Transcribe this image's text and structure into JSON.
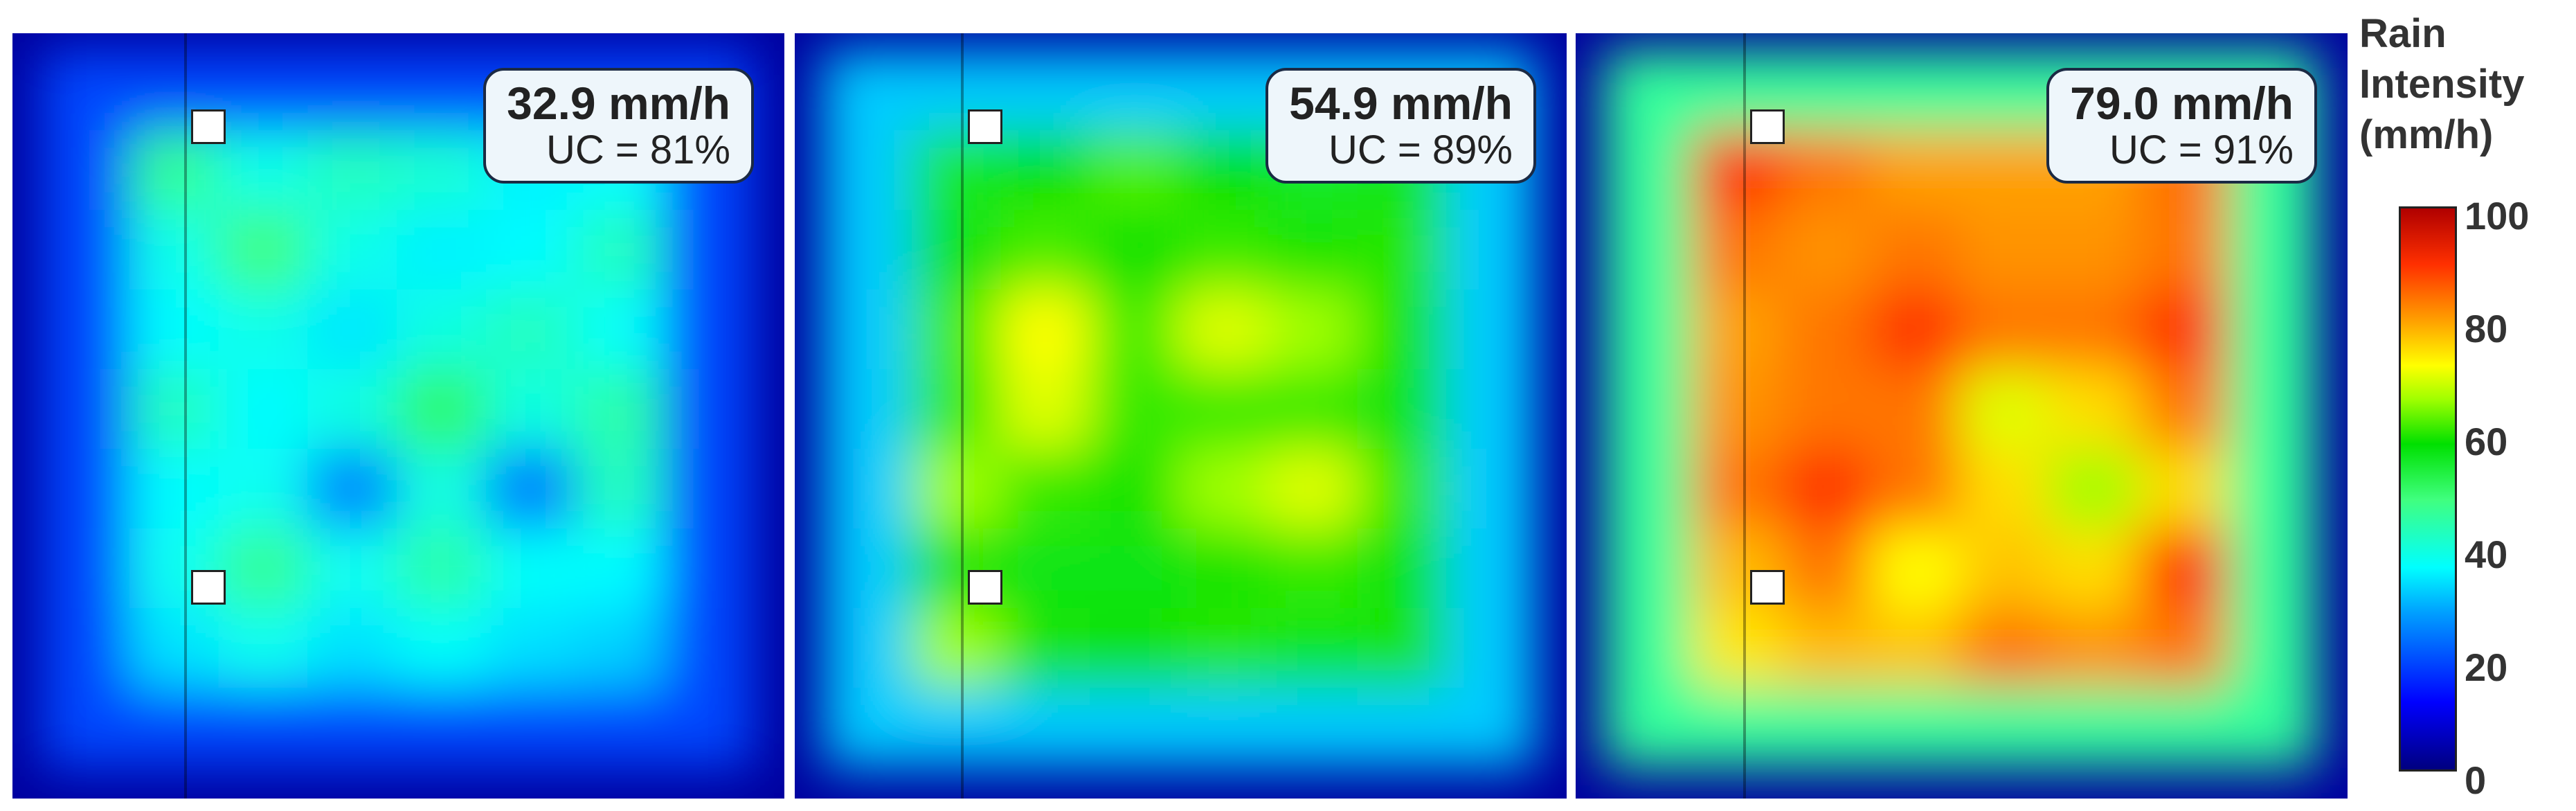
{
  "chart_data": [
    {
      "type": "heatmap",
      "title": "32.9 mm/h",
      "subtitle": "UC = 81%",
      "mean_intensity_mm_per_h": 32.9,
      "uniformity_coefficient_percent": 81,
      "base_value": 32,
      "edge_value": 3,
      "hotspots": [
        {
          "col": 1,
          "row": 1,
          "value": 46
        },
        {
          "col": 3,
          "row": 1,
          "value": 42
        },
        {
          "col": 4,
          "row": 1,
          "value": 40
        },
        {
          "col": 2,
          "row": 2,
          "value": 48
        },
        {
          "col": 6,
          "row": 2,
          "value": 42
        },
        {
          "col": 5,
          "row": 3,
          "value": 42
        },
        {
          "col": 4,
          "row": 4,
          "value": 50
        },
        {
          "col": 6,
          "row": 4,
          "value": 44
        },
        {
          "col": 2,
          "row": 6,
          "value": 46
        },
        {
          "col": 4,
          "row": 6,
          "value": 44
        },
        {
          "col": 6,
          "row": 5,
          "value": 42
        },
        {
          "col": 1,
          "row": 4,
          "value": 42
        },
        {
          "col": 3,
          "row": 5,
          "value": 25
        },
        {
          "col": 5,
          "row": 5,
          "value": 24
        },
        {
          "col": 4,
          "row": 8,
          "value": 26
        }
      ]
    },
    {
      "type": "heatmap",
      "title": "54.9 mm/h",
      "subtitle": "UC = 89%",
      "mean_intensity_mm_per_h": 54.9,
      "uniformity_coefficient_percent": 89,
      "base_value": 55,
      "edge_value": 3,
      "hotspots": [
        {
          "col": 2,
          "row": 3,
          "value": 72
        },
        {
          "col": 2,
          "row": 4,
          "value": 70
        },
        {
          "col": 1,
          "row": 5,
          "value": 66
        },
        {
          "col": 4,
          "row": 3,
          "value": 70
        },
        {
          "col": 4,
          "row": 5,
          "value": 66
        },
        {
          "col": 5,
          "row": 5,
          "value": 70
        },
        {
          "col": 5,
          "row": 3,
          "value": 66
        },
        {
          "col": 7,
          "row": 2,
          "value": 68
        },
        {
          "col": 7,
          "row": 5,
          "value": 70
        },
        {
          "col": 7,
          "row": 7,
          "value": 66
        },
        {
          "col": 4,
          "row": 8,
          "value": 68
        },
        {
          "col": 3,
          "row": 8,
          "value": 64
        },
        {
          "col": 1,
          "row": 7,
          "value": 66
        },
        {
          "col": 3,
          "row": 1,
          "value": 62
        }
      ]
    },
    {
      "type": "heatmap",
      "title": "79.0 mm/h",
      "subtitle": "UC = 91%",
      "mean_intensity_mm_per_h": 79.0,
      "uniformity_coefficient_percent": 91,
      "base_value": 80,
      "edge_value": 3,
      "hotspots": [
        {
          "col": 1,
          "row": 1,
          "value": 90
        },
        {
          "col": 7,
          "row": 1,
          "value": 92
        },
        {
          "col": 6,
          "row": 3,
          "value": 90
        },
        {
          "col": 3,
          "row": 3,
          "value": 90
        },
        {
          "col": 2,
          "row": 5,
          "value": 90
        },
        {
          "col": 6,
          "row": 6,
          "value": 90
        },
        {
          "col": 4,
          "row": 8,
          "value": 90
        },
        {
          "col": 4,
          "row": 4,
          "value": 70
        },
        {
          "col": 5,
          "row": 5,
          "value": 66
        },
        {
          "col": 3,
          "row": 6,
          "value": 72
        },
        {
          "col": 1,
          "row": 7,
          "value": 74
        },
        {
          "col": 6,
          "row": 8,
          "value": 72
        }
      ]
    }
  ],
  "colorbar": {
    "title_lines": [
      "Rain",
      "Intensity",
      "(mm/h)"
    ],
    "ticks": [
      "100",
      "80",
      "60",
      "40",
      "20",
      "0"
    ],
    "range": [
      0,
      100
    ]
  }
}
